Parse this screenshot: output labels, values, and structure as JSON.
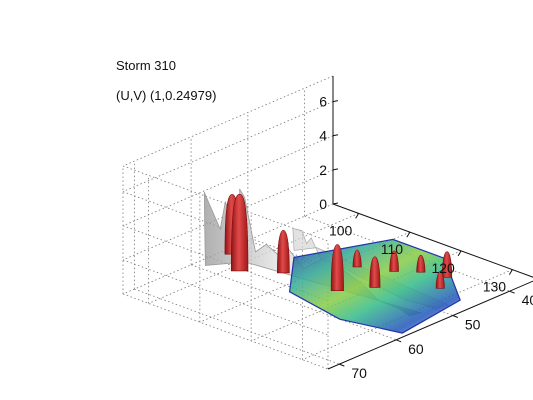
{
  "chart_data": {
    "type": "surface3d",
    "title_lines": [
      "Storm 310",
      "(U,V) (1,0.24979)"
    ],
    "axes": {
      "x": {
        "ticks": [
          100,
          110,
          120,
          130
        ],
        "range": [
          95,
          135
        ]
      },
      "y": {
        "ticks": [
          40,
          50,
          60,
          70
        ],
        "range": [
          35,
          72
        ]
      },
      "z": {
        "ticks": [
          0,
          2,
          4,
          6
        ],
        "range": [
          0,
          7.5
        ]
      }
    },
    "grid": true,
    "colors": {
      "isosurface_outer": "#c8c8c8",
      "isosurface_core": "#cc3333",
      "slice_low": "#2233aa",
      "slice_mid": "#33bb88",
      "slice_high": "#dddd22"
    },
    "cores": [
      {
        "x": 103,
        "y": 60,
        "zbase": 1.5,
        "ztop": 5.0
      },
      {
        "x": 110,
        "y": 65,
        "zbase": 2.0,
        "ztop": 6.5
      },
      {
        "x": 113,
        "y": 60,
        "zbase": 1.5,
        "ztop": 4.0
      },
      {
        "x": 118,
        "y": 55,
        "zbase": 0.3,
        "ztop": 3.0
      },
      {
        "x": 113,
        "y": 47,
        "zbase": 0.0,
        "ztop": 1.0
      },
      {
        "x": 118,
        "y": 45,
        "zbase": 0.0,
        "ztop": 1.2
      },
      {
        "x": 121,
        "y": 43,
        "zbase": 0.0,
        "ztop": 1.0
      },
      {
        "x": 125,
        "y": 42,
        "zbase": 0.0,
        "ztop": 1.5
      },
      {
        "x": 127,
        "y": 45,
        "zbase": 0.0,
        "ztop": 1.0
      },
      {
        "x": 122,
        "y": 52,
        "zbase": 0.5,
        "ztop": 2.3
      }
    ]
  }
}
